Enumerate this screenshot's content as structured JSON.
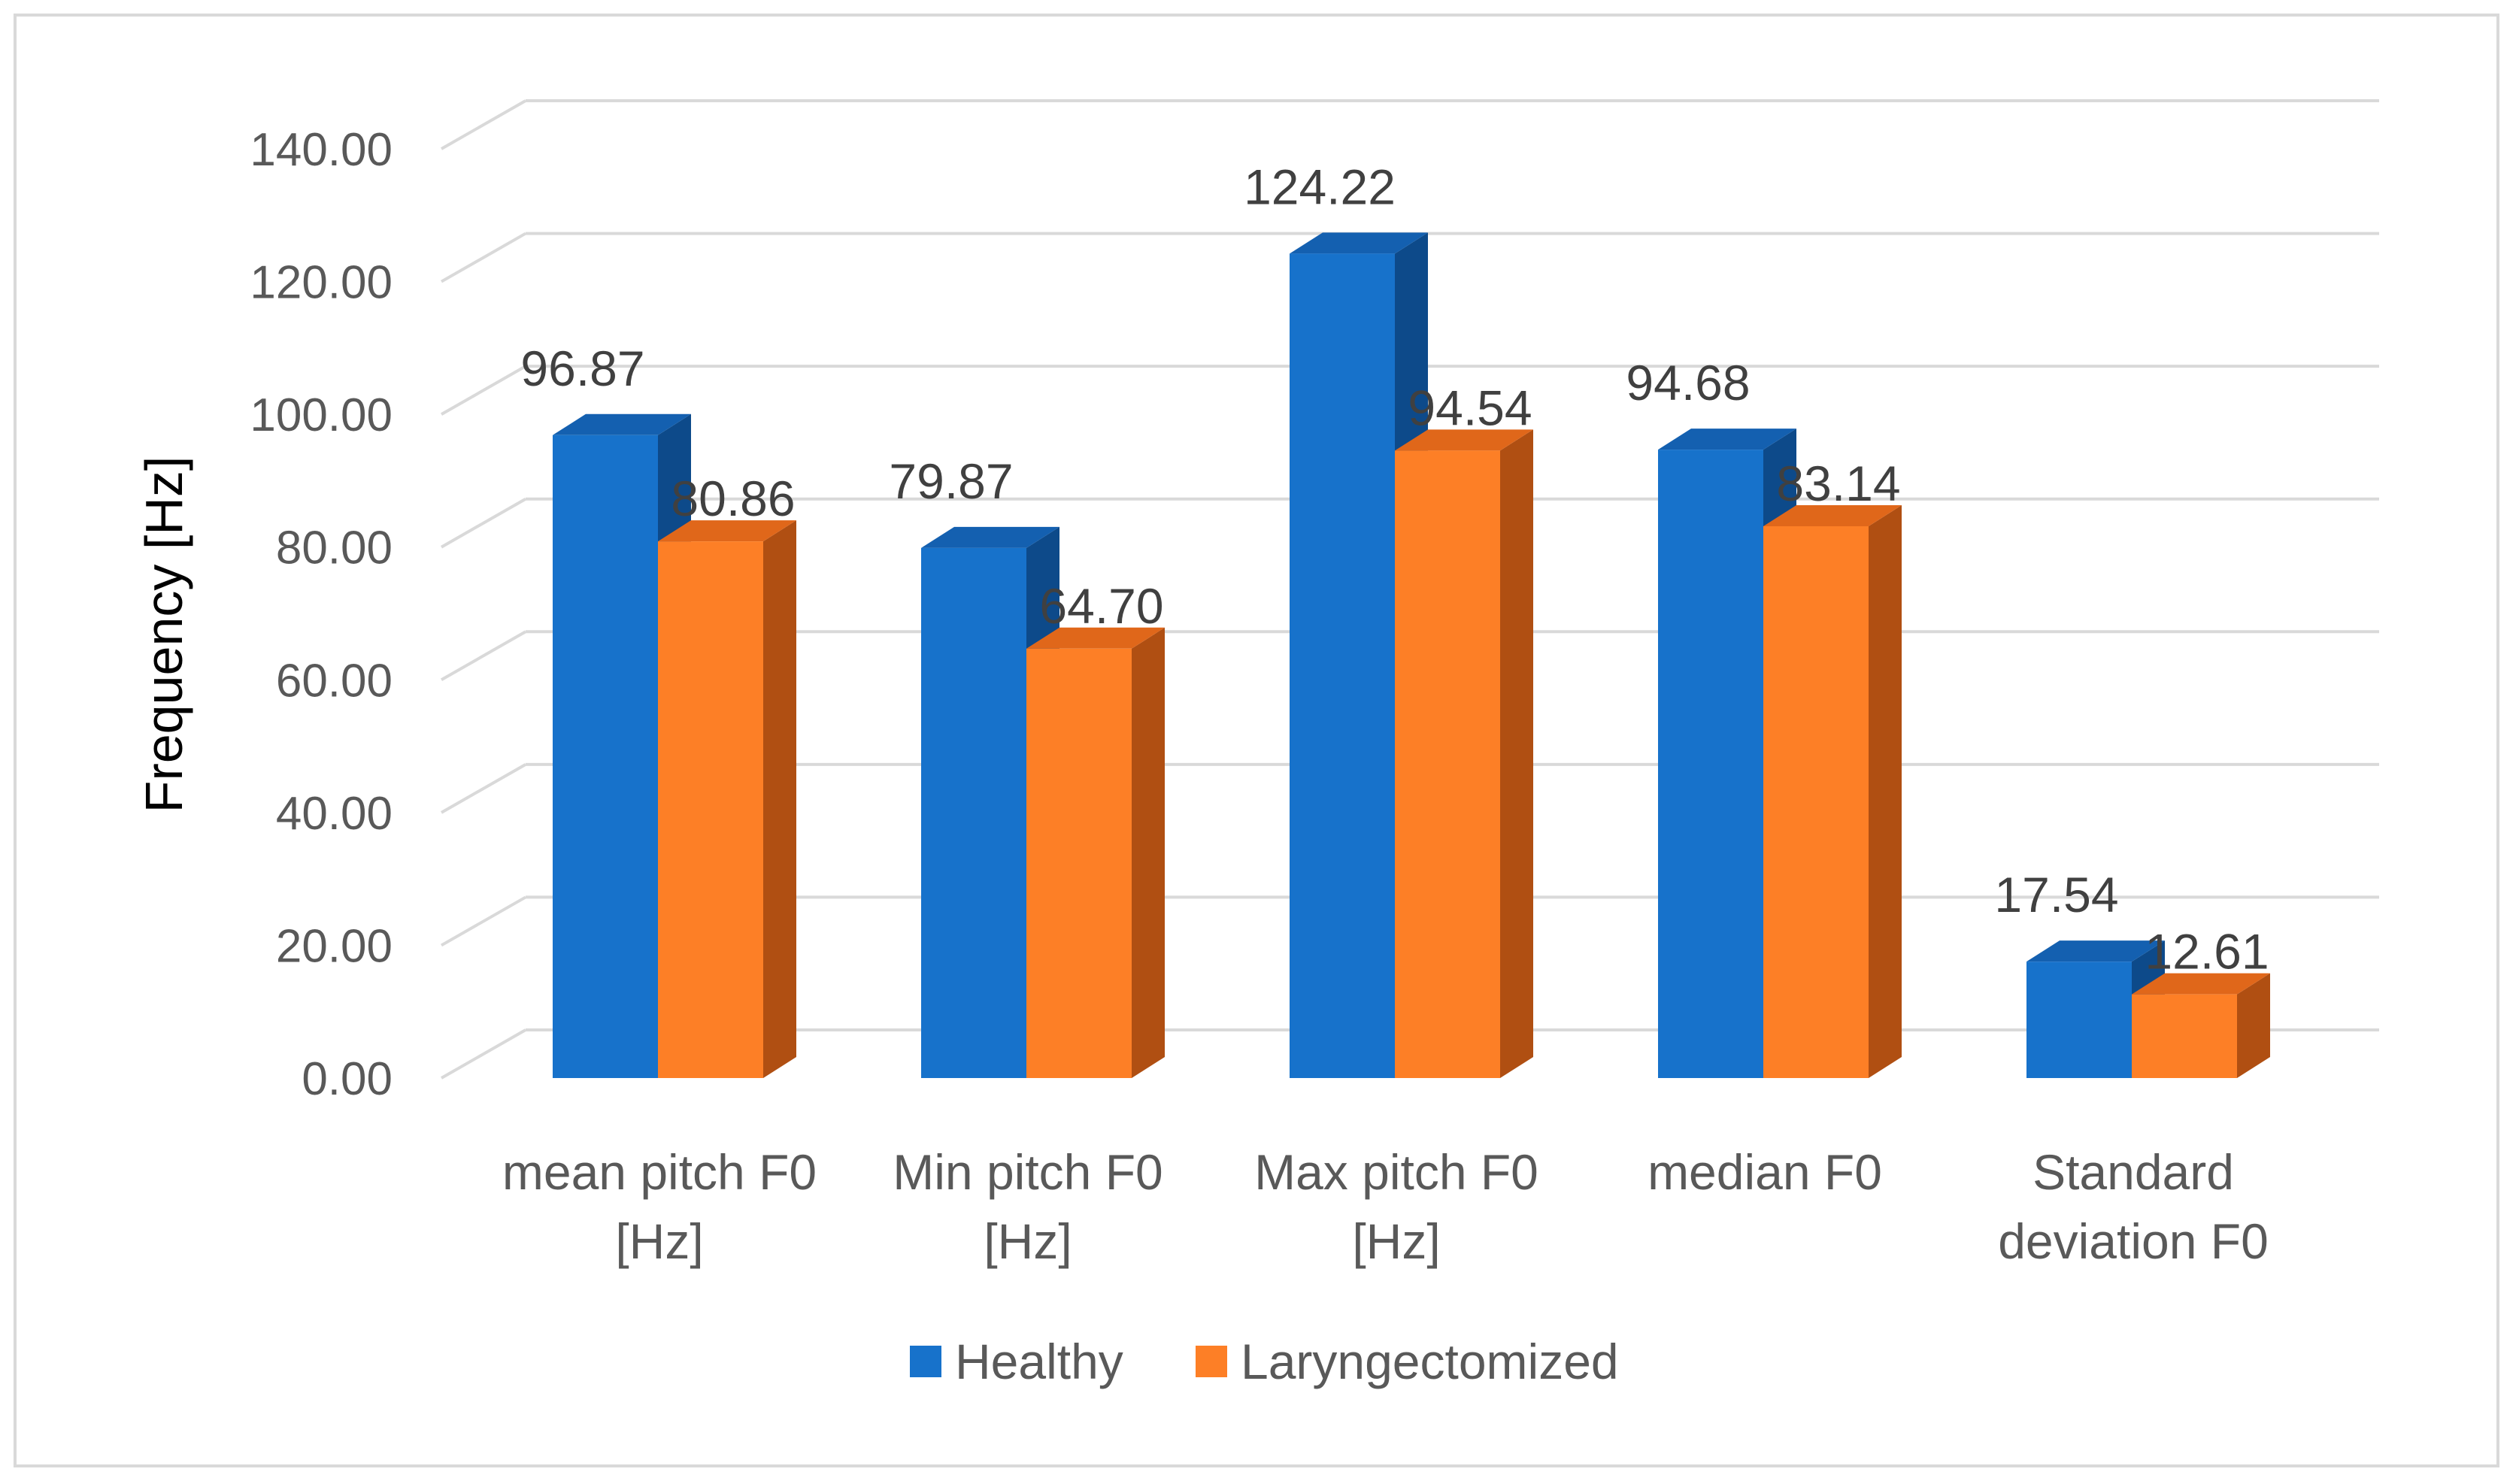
{
  "chart_data": {
    "type": "bar",
    "style": "3d-clustered-column",
    "title": "",
    "xlabel": "",
    "ylabel": "Frequency [Hz]",
    "ylim": [
      0,
      140
    ],
    "ytick_step": 20,
    "ytick_labels": [
      "0.00",
      "20.00",
      "40.00",
      "60.00",
      "80.00",
      "100.00",
      "120.00",
      "140.00"
    ],
    "categories": [
      [
        "mean pitch F0",
        "[Hz]"
      ],
      [
        "Min pitch F0",
        "[Hz]"
      ],
      [
        "Max pitch F0",
        "[Hz]"
      ],
      [
        "median F0"
      ],
      [
        "Standard",
        "deviation F0"
      ]
    ],
    "series": [
      {
        "name": "Healthy",
        "values": [
          96.87,
          79.87,
          124.22,
          94.68,
          17.54
        ],
        "labels": [
          "96.87",
          "79.87",
          "124.22",
          "94.68",
          "17.54"
        ],
        "color": "#1772cb",
        "side_color": "#0d4a8a",
        "top_color": "#1460b0"
      },
      {
        "name": "Laryngectomized",
        "values": [
          80.86,
          64.7,
          94.54,
          83.14,
          12.61
        ],
        "labels": [
          "80.86",
          "64.70",
          "94.54",
          "83.14",
          "12.61"
        ],
        "color": "#fd7f26",
        "side_color": "#b04f12",
        "top_color": "#e0671a"
      }
    ],
    "grid": true,
    "legend_position": "bottom"
  }
}
